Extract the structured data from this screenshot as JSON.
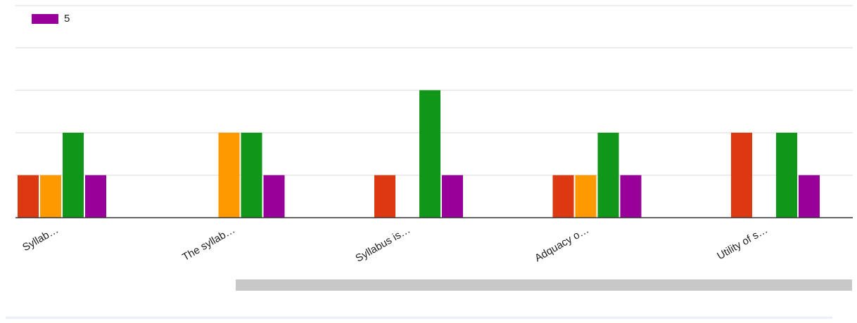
{
  "legend": {
    "label": "5",
    "color": "#990099"
  },
  "colors": {
    "series_1": "#dc3912",
    "series_2": "#ff9900",
    "series_3": "#109618",
    "series_4": "#990099",
    "grid": "#e6e6e6",
    "axis": "#333333",
    "scrollbar": "#c8c8c8"
  },
  "chart_data": {
    "type": "bar",
    "categories": [
      "Syllab…",
      "The syllab…",
      "Syllabus is…",
      "Adquacy o…",
      "Utility of s…"
    ],
    "series": [
      {
        "color": "#dc3912",
        "values": [
          1,
          0,
          1,
          1,
          2
        ]
      },
      {
        "color": "#ff9900",
        "values": [
          1,
          2,
          0,
          1,
          0
        ]
      },
      {
        "color": "#109618",
        "values": [
          2,
          2,
          3,
          2,
          2
        ]
      },
      {
        "name": "5",
        "color": "#990099",
        "values": [
          1,
          1,
          1,
          1,
          1
        ]
      }
    ],
    "ylim": [
      0,
      4
    ],
    "grid": true,
    "legend_position": "top-left",
    "xlabel": "",
    "ylabel": ""
  }
}
